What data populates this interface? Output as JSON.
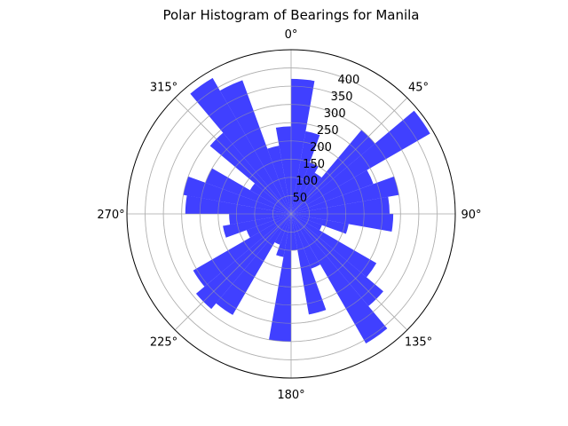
{
  "chart_data": {
    "type": "bar",
    "projection": "polar",
    "title": "Polar Histogram of Bearings for Manila",
    "theta_zero": "N",
    "theta_direction": "clockwise",
    "theta_tick_labels": [
      "0°",
      "45°",
      "90°",
      "135°",
      "180°",
      "225°",
      "270°",
      "315°"
    ],
    "theta_tick_values": [
      0,
      45,
      90,
      135,
      180,
      225,
      270,
      315
    ],
    "r_tick_labels": [
      "50",
      "100",
      "150",
      "200",
      "250",
      "300",
      "350",
      "400"
    ],
    "r_tick_values": [
      50,
      100,
      150,
      200,
      250,
      300,
      350,
      400
    ],
    "rlim": [
      0,
      450
    ],
    "bin_width_deg": 10,
    "bar_color": "#0000ff",
    "bar_alpha": 0.75,
    "grid": true,
    "bins_start_deg": [
      0,
      10,
      20,
      30,
      40,
      50,
      60,
      70,
      80,
      90,
      100,
      110,
      120,
      130,
      140,
      150,
      160,
      170,
      180,
      190,
      200,
      210,
      220,
      230,
      240,
      250,
      260,
      270,
      280,
      290,
      300,
      310,
      320,
      330,
      340,
      350
    ],
    "values": [
      370,
      230,
      150,
      130,
      300,
      440,
      240,
      300,
      270,
      280,
      160,
      90,
      270,
      330,
      410,
      160,
      280,
      100,
      350,
      120,
      90,
      320,
      340,
      310,
      130,
      190,
      170,
      290,
      300,
      250,
      130,
      290,
      430,
      390,
      190,
      240
    ]
  }
}
